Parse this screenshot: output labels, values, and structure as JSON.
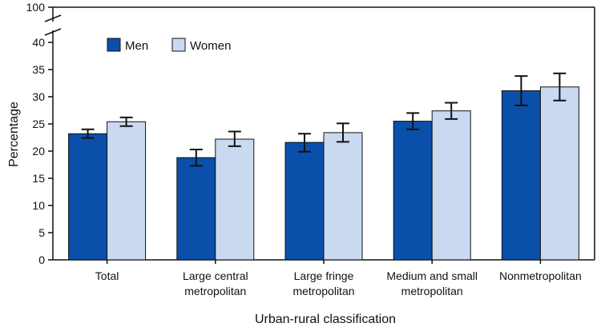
{
  "chart_data": {
    "type": "bar",
    "title": "",
    "xlabel": "Urban-rural classification",
    "ylabel": "Percentage",
    "ylim": [
      0,
      40
    ],
    "axis_break": {
      "top_label": "100"
    },
    "yticks": [
      "0",
      "5",
      "10",
      "15",
      "20",
      "25",
      "30",
      "35",
      "40"
    ],
    "legend_position": "top-left",
    "categories": [
      [
        "Total"
      ],
      [
        "Large central",
        "metropolitan"
      ],
      [
        "Large fringe",
        "metropolitan"
      ],
      [
        "Medium and small",
        "metropolitan"
      ],
      [
        "Nonmetropolitan"
      ]
    ],
    "series": [
      {
        "name": "Men",
        "color": "#0a4faa",
        "values": [
          23.2,
          18.8,
          21.6,
          25.5,
          31.1
        ],
        "ci_low": [
          22.4,
          17.3,
          19.9,
          24.0,
          28.4
        ],
        "ci_high": [
          24.0,
          20.3,
          23.2,
          27.0,
          33.8
        ]
      },
      {
        "name": "Women",
        "color": "#c9daf0",
        "values": [
          25.4,
          22.2,
          23.4,
          27.4,
          31.8
        ],
        "ci_low": [
          24.6,
          20.9,
          21.7,
          25.9,
          29.3
        ],
        "ci_high": [
          26.2,
          23.6,
          25.1,
          28.9,
          34.3
        ]
      }
    ]
  }
}
